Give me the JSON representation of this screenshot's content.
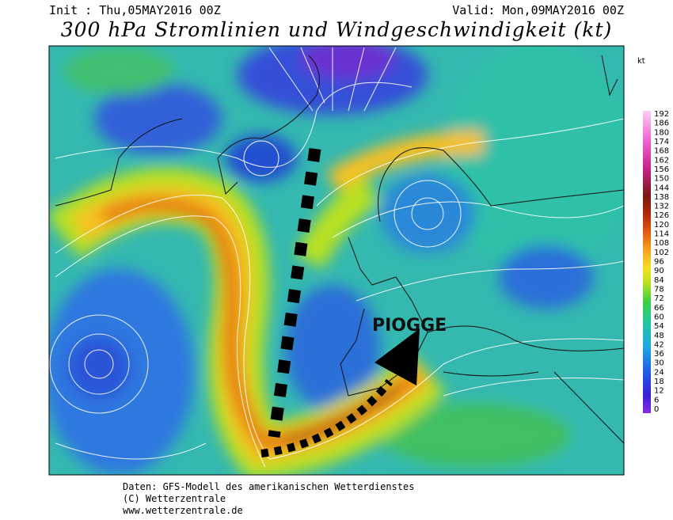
{
  "header": {
    "init": "Init : Thu,05MAY2016 00Z",
    "valid": "Valid: Mon,09MAY2016 00Z",
    "title": "300 hPa Stromlinien und Windgeschwindigkeit (kt)"
  },
  "legend": {
    "unit": "kt",
    "labels": [
      "192",
      "186",
      "180",
      "174",
      "168",
      "162",
      "156",
      "150",
      "144",
      "138",
      "132",
      "126",
      "120",
      "114",
      "108",
      "102",
      "96",
      "90",
      "84",
      "78",
      "72",
      "66",
      "60",
      "54",
      "48",
      "42",
      "36",
      "30",
      "24",
      "18",
      "12",
      "6",
      "0"
    ]
  },
  "annotation": "PIOGGE",
  "footer": [
    "Daten: GFS-Modell des amerikanischen Wetterdienstes",
    "(C) Wetterzentrale",
    "www.wetterzentrale.de"
  ]
}
